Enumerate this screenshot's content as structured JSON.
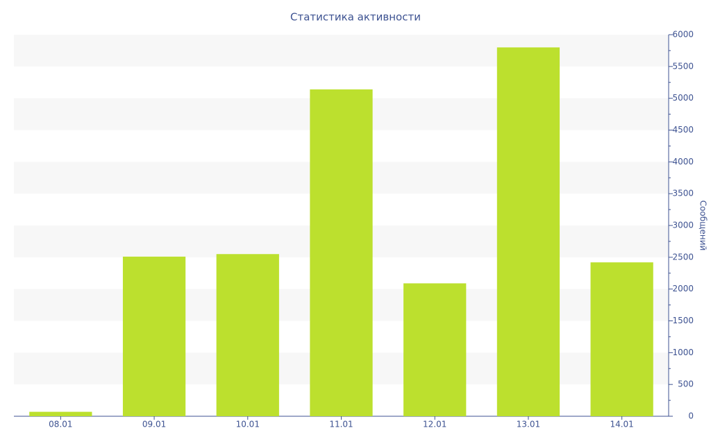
{
  "chart_data": {
    "type": "bar",
    "title": "Статистика активности",
    "y_label": "Сообщений",
    "categories": [
      "08.01",
      "09.01",
      "10.01",
      "11.01",
      "12.01",
      "13.01",
      "14.01"
    ],
    "values": [
      70,
      2510,
      2550,
      5140,
      2090,
      5800,
      2420
    ],
    "color": "#bce02e",
    "ylim": [
      0,
      6000
    ],
    "yticks": [
      0,
      500,
      1000,
      1500,
      2000,
      2500,
      3000,
      3500,
      4000,
      4500,
      5000,
      5500,
      6000
    ],
    "grid": true,
    "y_axis_side": "right"
  }
}
